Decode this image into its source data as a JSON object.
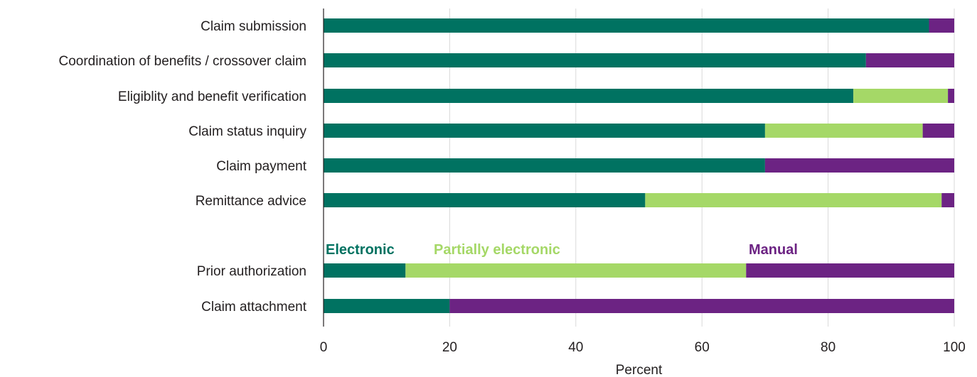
{
  "chart_data": {
    "type": "bar",
    "stacked": true,
    "orientation": "horizontal",
    "categories": [
      "Claim submission",
      "Coordination of benefits / crossover claim",
      "Eligiblity and benefit verification",
      "Claim status inquiry",
      "Claim payment",
      "Remittance advice",
      "Prior authorization",
      "Claim attachment"
    ],
    "series": [
      {
        "name": "Electronic",
        "color": "#007261",
        "values": [
          96,
          86,
          84,
          70,
          70,
          51,
          13,
          20
        ]
      },
      {
        "name": "Partially electronic",
        "color": "#a5d867",
        "values": [
          0,
          0,
          15,
          25,
          0,
          47,
          54,
          0
        ]
      },
      {
        "name": "Manual",
        "color": "#6c2383",
        "values": [
          4,
          14,
          1,
          5,
          30,
          2,
          33,
          80
        ]
      }
    ],
    "xlabel": "Percent",
    "ylabel": "",
    "xlim": [
      0,
      100
    ],
    "xticks": [
      "0",
      "20",
      "40",
      "60",
      "80",
      "100"
    ],
    "grid": true,
    "legend": "inline, above Prior authorization"
  }
}
